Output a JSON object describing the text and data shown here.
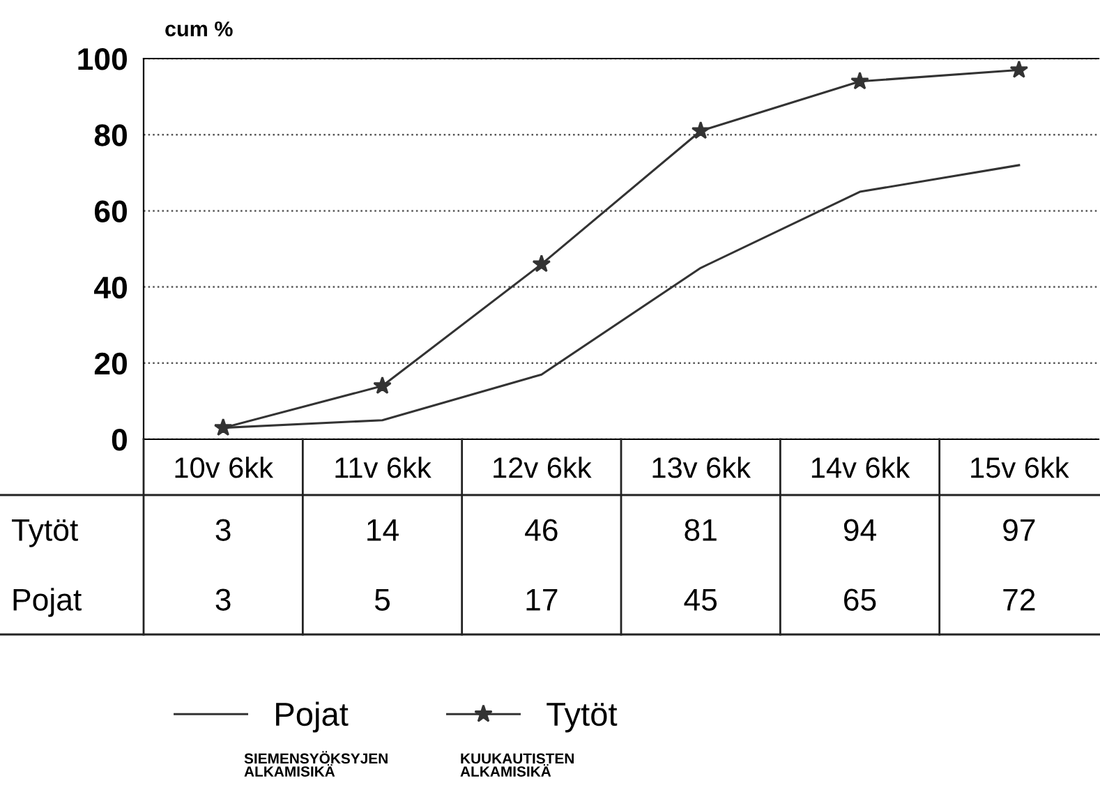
{
  "chart_data": {
    "type": "line",
    "ylabel": "cum %",
    "categories": [
      "10v 6kk",
      "11v 6kk",
      "12v 6kk",
      "13v 6kk",
      "14v 6kk",
      "15v 6kk"
    ],
    "series": [
      {
        "name": "Tytöt",
        "color": "#333333",
        "marker": "star",
        "values": [
          3,
          14,
          46,
          81,
          94,
          97
        ]
      },
      {
        "name": "Pojat",
        "color": "#333333",
        "marker": "none",
        "values": [
          3,
          5,
          17,
          45,
          65,
          72
        ]
      }
    ],
    "ylim": [
      0,
      100
    ],
    "yticks": [
      0,
      20,
      40,
      60,
      80,
      100
    ],
    "grid": "y",
    "legend": "bottom",
    "data_labels": true,
    "line_style": "solid",
    "annotations": [
      "SIEMENSYÖKSYJEN\nALKAMISIKÄ",
      "KUUKAUTISTEN\nALKAMISIKÄ"
    ]
  }
}
